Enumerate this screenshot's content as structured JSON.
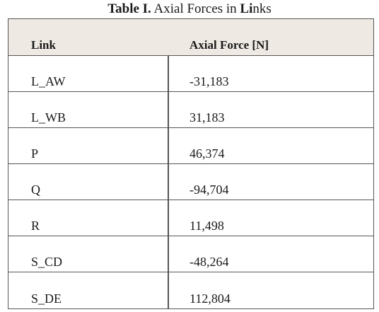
{
  "caption": {
    "bold": "Table I.",
    "rest_a": " Axial Forces in ",
    "rest_b": "Li",
    "rest_c": "nks"
  },
  "table": {
    "headers": [
      "Link",
      "Axial Force [N]"
    ],
    "rows": [
      [
        "L_AW",
        "-31,183"
      ],
      [
        "L_WB",
        "31,183"
      ],
      [
        "P",
        "46,374"
      ],
      [
        "Q",
        "-94,704"
      ],
      [
        "R",
        "11,498"
      ],
      [
        "S_CD",
        "-48,264"
      ],
      [
        "S_DE",
        "112,804"
      ]
    ]
  }
}
